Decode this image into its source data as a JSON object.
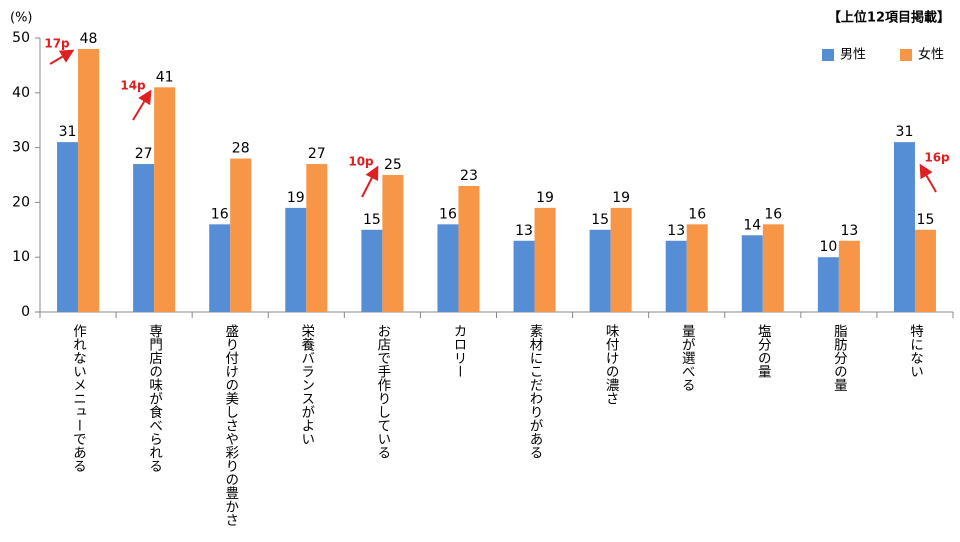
{
  "chart_data": {
    "type": "bar",
    "note": "【上位12項目掲載】",
    "y_label": "(%)",
    "categories": [
      "作れないメニューである",
      "専門店の味が食べられる",
      "盛り付けの美しさや彩りの豊かさ",
      "栄養バランスがよい",
      "お店で手作りしている",
      "カロリー",
      "素材にこだわりがある",
      "味付けの濃さ",
      "量が選べる",
      "塩分の量",
      "脂肪分の量",
      "特にない"
    ],
    "series": [
      {
        "name": "男性",
        "color": "#558ed5",
        "values": [
          31,
          27,
          16,
          19,
          15,
          16,
          13,
          15,
          13,
          14,
          10,
          31
        ]
      },
      {
        "name": "女性",
        "color": "#f79646",
        "values": [
          48,
          41,
          28,
          27,
          25,
          23,
          19,
          19,
          16,
          16,
          13,
          15
        ]
      }
    ],
    "annotations": [
      "17p",
      "14p",
      "10p",
      "16p"
    ],
    "ylim": [
      0,
      50
    ],
    "yticks": [
      0,
      10,
      20,
      30,
      40,
      50
    ],
    "grid": false,
    "legend_position": "top-right"
  }
}
